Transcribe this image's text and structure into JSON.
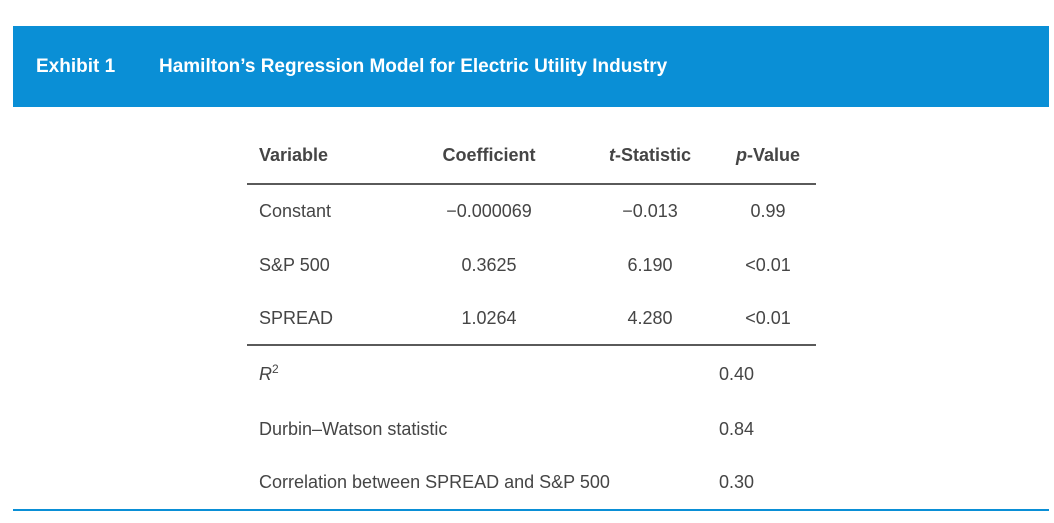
{
  "exhibit": {
    "label": "Exhibit 1",
    "title": "Hamilton’s Regression Model for Electric Utility Industry"
  },
  "table": {
    "headers": {
      "variable": "Variable",
      "coefficient": "Coefficient",
      "t_stat_italic": "t",
      "t_stat_rest": "-Statistic",
      "p_value_italic": "p",
      "p_value_rest": "-Value"
    },
    "rows": [
      {
        "variable": "Constant",
        "coefficient": "−0.000069",
        "t_stat": "−0.013",
        "p_value": "0.99"
      },
      {
        "variable": "S&P 500",
        "coefficient": "0.3625",
        "t_stat": "6.190",
        "p_value": "<0.01"
      },
      {
        "variable": "SPREAD",
        "coefficient": "1.0264",
        "t_stat": "4.280",
        "p_value": "<0.01"
      }
    ],
    "stats": [
      {
        "label_main": "R",
        "label_sup": "2",
        "value": "0.40"
      },
      {
        "label": "Durbin–Watson statistic",
        "value": "0.84"
      },
      {
        "label": "Correlation between SPREAD and S&P 500",
        "value": "0.30"
      }
    ]
  }
}
